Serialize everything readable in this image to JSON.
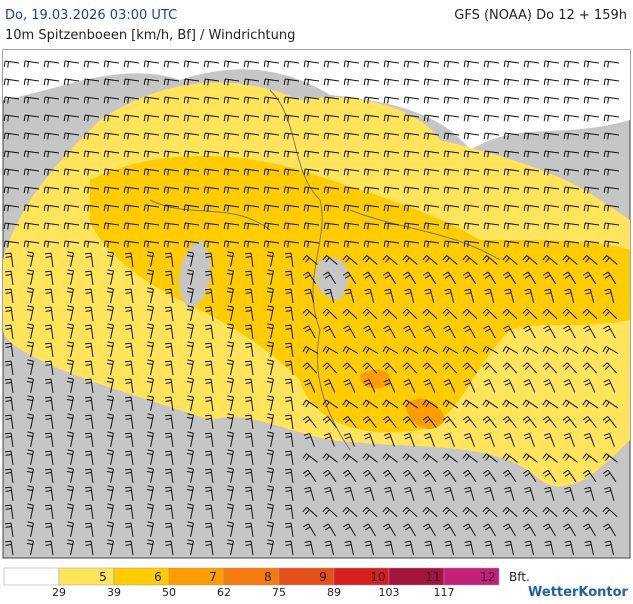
{
  "header": {
    "datetime": "Do, 19.03.2026 03:00 UTC",
    "model": "GFS (NOAA) Do 12 + 159h",
    "subtitle": "10m Spitzenboeen [km/h, Bf] / Windrichtung"
  },
  "legend": {
    "items": [
      {
        "label": "",
        "color": "#ffffff"
      },
      {
        "label": "5",
        "color": "#ffe45c"
      },
      {
        "label": "6",
        "color": "#ffcc00"
      },
      {
        "label": "7",
        "color": "#ff9c00"
      },
      {
        "label": "8",
        "color": "#f57a10"
      },
      {
        "label": "9",
        "color": "#e8501a"
      },
      {
        "label": "10",
        "color": "#d81f1f"
      },
      {
        "label": "11",
        "color": "#a3153e"
      },
      {
        "label": "12",
        "color": "#c4207a"
      }
    ],
    "unit": "Bft.",
    "thresholds": [
      "29",
      "39",
      "50",
      "62",
      "75",
      "89",
      "103",
      "117"
    ]
  },
  "logo": "WetterKontor"
}
